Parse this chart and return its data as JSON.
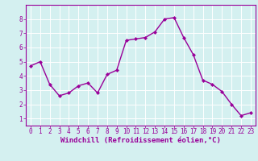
{
  "x": [
    0,
    1,
    2,
    3,
    4,
    5,
    6,
    7,
    8,
    9,
    10,
    11,
    12,
    13,
    14,
    15,
    16,
    17,
    18,
    19,
    20,
    21,
    22,
    23
  ],
  "y": [
    4.7,
    5.0,
    3.4,
    2.6,
    2.8,
    3.3,
    3.5,
    2.8,
    4.1,
    4.4,
    6.5,
    6.6,
    6.7,
    7.1,
    8.0,
    8.1,
    6.7,
    5.5,
    3.7,
    3.4,
    2.9,
    2.0,
    1.2,
    1.4
  ],
  "line_color": "#990099",
  "marker": "D",
  "marker_size": 2.0,
  "background_color": "#d4f0f0",
  "grid_color": "#b0d8d8",
  "xlabel": "Windchill (Refroidissement éolien,°C)",
  "xlabel_color": "#990099",
  "tick_color": "#990099",
  "ylim": [
    0.5,
    9.0
  ],
  "xlim": [
    -0.5,
    23.5
  ],
  "yticks": [
    1,
    2,
    3,
    4,
    5,
    6,
    7,
    8
  ],
  "xticks": [
    0,
    1,
    2,
    3,
    4,
    5,
    6,
    7,
    8,
    9,
    10,
    11,
    12,
    13,
    14,
    15,
    16,
    17,
    18,
    19,
    20,
    21,
    22,
    23
  ],
  "line_width": 1.0,
  "tick_fontsize": 5.5,
  "xlabel_fontsize": 6.5
}
